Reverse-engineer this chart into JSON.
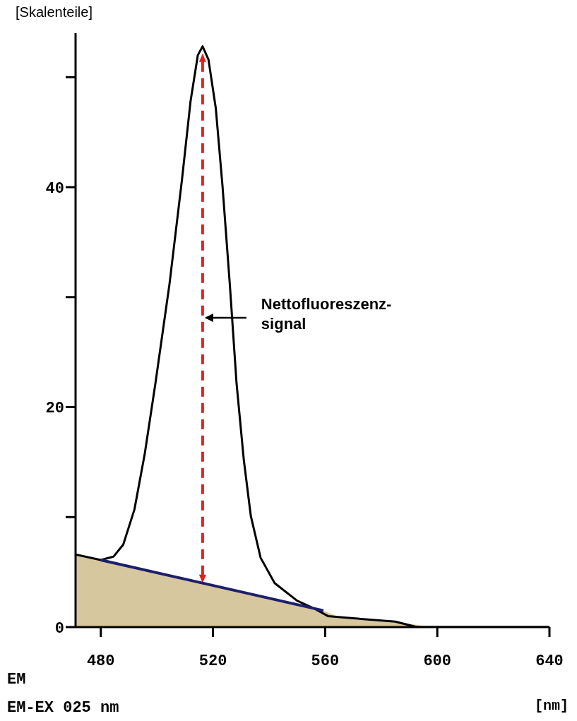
{
  "chart_data": {
    "type": "line",
    "ylabel": "[Skalenteile]",
    "xlabel": "[nm]",
    "annotations": [
      "EM",
      "EM-EX 025 nm",
      "Nettofluoreszenz-\nsignal"
    ],
    "xlim": [
      471,
      640
    ],
    "xticks": [
      480,
      520,
      560,
      600,
      640
    ],
    "ylim": [
      0,
      54
    ],
    "yticks": [
      0,
      {
        "value": 10,
        "label": null
      },
      20,
      {
        "value": 30,
        "label": null
      },
      40,
      {
        "value": 50,
        "label": null
      }
    ],
    "marker": "none",
    "series": [
      {
        "type": "area",
        "color": "#d6c79e",
        "x": [
          471,
          480,
          559.4,
          565,
          585,
          598
        ],
        "values": [
          6.6,
          6.1,
          1.5,
          0.9,
          0.5,
          0
        ]
      },
      {
        "color": "#000000",
        "x": [
          471,
          480,
          484.5,
          488,
          492,
          495.7,
          499.5,
          504.5,
          509,
          512,
          514.6,
          516.3,
          518.4,
          521,
          523.4,
          526,
          528.4,
          531,
          533.5,
          537,
          542,
          550,
          556,
          561,
          570,
          585,
          592.7,
          600,
          620,
          640
        ],
        "values": [
          6.6,
          6.1,
          6.4,
          7.5,
          10.7,
          15.8,
          22.2,
          31.2,
          40.8,
          47.8,
          52,
          52.8,
          51.6,
          47.2,
          40.1,
          31.2,
          22.2,
          15.2,
          10.1,
          6.3,
          4,
          2.4,
          1.7,
          1,
          0.8,
          0.5,
          0,
          0,
          0,
          0
        ]
      },
      {
        "type": "line",
        "color": "#1c1f6e",
        "x": [
          480,
          559.4
        ],
        "values": [
          6.1,
          1.5
        ]
      }
    ]
  }
}
